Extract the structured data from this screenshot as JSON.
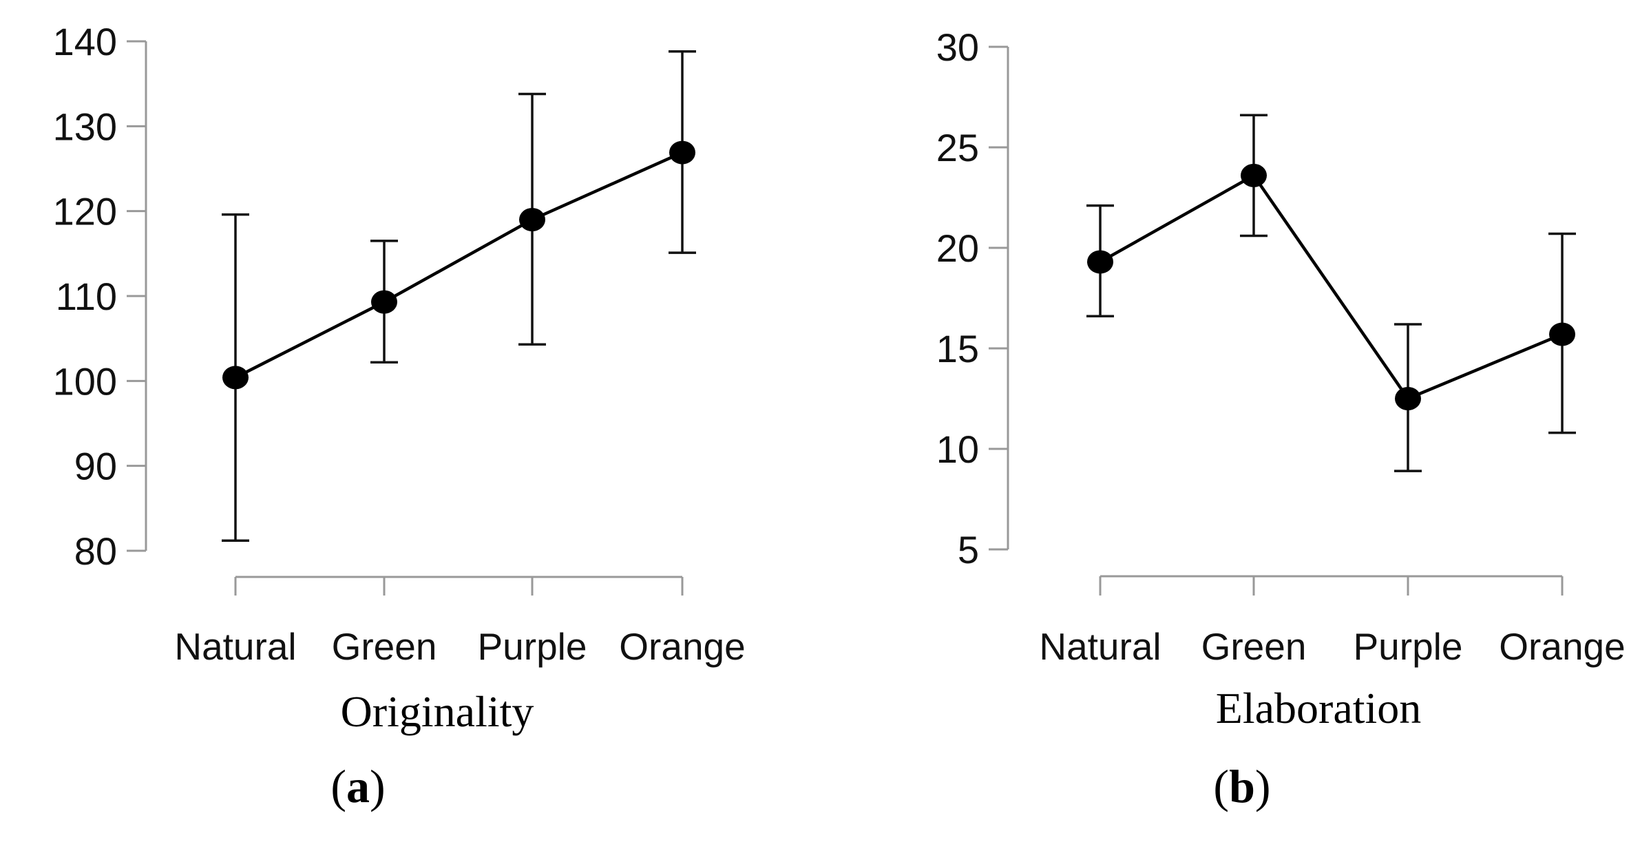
{
  "chart_data": [
    {
      "type": "line",
      "panel_label_open": "(",
      "panel_letter": "a",
      "panel_label_close": ")",
      "xlabel": "Originality",
      "ylabel": "",
      "categories": [
        "Natural",
        "Green",
        "Purple",
        "Orange"
      ],
      "values": [
        100.4,
        109.3,
        119.0,
        126.9
      ],
      "error_low": [
        81.2,
        102.2,
        104.3,
        115.1
      ],
      "error_high": [
        119.6,
        116.5,
        133.8,
        138.8
      ],
      "ylim": [
        80,
        140
      ],
      "yticks": [
        80,
        90,
        100,
        110,
        120,
        130,
        140
      ],
      "grid": false
    },
    {
      "type": "line",
      "panel_label_open": "(",
      "panel_letter": "b",
      "panel_label_close": ")",
      "xlabel": "Elaboration",
      "ylabel": "",
      "categories": [
        "Natural",
        "Green",
        "Purple",
        "Orange"
      ],
      "values": [
        19.3,
        23.6,
        12.5,
        15.7
      ],
      "error_low": [
        16.6,
        20.6,
        8.9,
        10.8
      ],
      "error_high": [
        22.1,
        26.6,
        16.2,
        20.7
      ],
      "ylim": [
        5,
        30
      ],
      "yticks": [
        5,
        10,
        15,
        20,
        25,
        30
      ],
      "grid": false
    }
  ]
}
